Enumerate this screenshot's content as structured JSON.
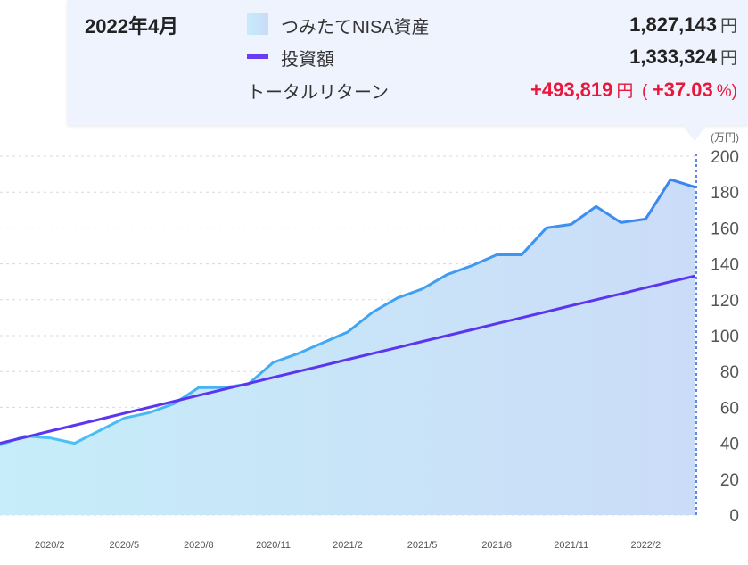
{
  "tooltip": {
    "date": "2022年4月",
    "asset_label": "つみたてNISA資産",
    "asset_value": "1,827,143",
    "invest_label": "投資額",
    "invest_value": "1,333,324",
    "return_label": "トータルリターン",
    "return_value": "+493,819",
    "return_pct_open": "(",
    "return_pct": "+37.03",
    "return_pct_close": "%)",
    "yen": "円"
  },
  "chart_data": {
    "type": "area",
    "y_unit_label": "(万円)",
    "ylim": [
      0,
      200
    ],
    "yticks": [
      0,
      20,
      40,
      60,
      80,
      100,
      120,
      140,
      160,
      180,
      200
    ],
    "x": [
      "2019/12",
      "2020/1",
      "2020/2",
      "2020/3",
      "2020/4",
      "2020/5",
      "2020/6",
      "2020/7",
      "2020/8",
      "2020/9",
      "2020/10",
      "2020/11",
      "2020/12",
      "2021/1",
      "2021/2",
      "2021/3",
      "2021/4",
      "2021/5",
      "2021/6",
      "2021/7",
      "2021/8",
      "2021/9",
      "2021/10",
      "2021/11",
      "2021/12",
      "2022/1",
      "2022/2",
      "2022/3",
      "2022/4"
    ],
    "xtick_labels": [
      "2020/2",
      "2020/5",
      "2020/8",
      "2020/11",
      "2021/2",
      "2021/5",
      "2021/8",
      "2021/11",
      "2022/2"
    ],
    "grid": true,
    "series": [
      {
        "name": "つみたてNISA資産",
        "type": "area",
        "color": "#3b8cf0",
        "values": [
          39,
          44,
          43,
          40,
          47,
          54,
          57,
          62,
          71,
          71,
          73,
          85,
          90,
          96,
          102,
          113,
          121,
          126,
          134,
          139,
          145,
          145,
          160,
          162,
          172,
          163,
          165,
          187,
          182.7
        ]
      },
      {
        "name": "投資額",
        "type": "line",
        "color": "#5b35f0",
        "values": [
          40,
          43.3,
          46.7,
          50,
          53.3,
          56.7,
          60,
          63.3,
          66.7,
          70,
          73.3,
          76.7,
          80,
          83.3,
          86.7,
          90,
          93.3,
          96.7,
          100,
          103.3,
          106.7,
          110,
          113.3,
          116.7,
          120,
          123.3,
          126.7,
          130,
          133.3
        ]
      }
    ],
    "highlight": "2022/4"
  }
}
